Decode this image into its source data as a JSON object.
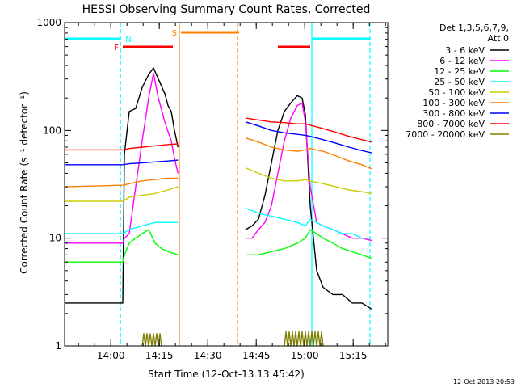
{
  "chart_data": {
    "type": "line",
    "title": "HESSI Observing Summary Count Rates, Corrected",
    "xlabel": "Start Time (12-Oct-13 13:45:42)",
    "ylabel": "Corrected Count Rate (s⁻¹ detector⁻¹)",
    "timestamp": "12-Oct-2013 20:53",
    "x_unit": "minutes after 13:45:42",
    "xlim": [
      0,
      100
    ],
    "ylim": [
      1,
      1000
    ],
    "yscale": "log",
    "x_ticks": [
      {
        "t": 14.3,
        "label": "14:00"
      },
      {
        "t": 29.3,
        "label": "14:15"
      },
      {
        "t": 44.3,
        "label": "14:30"
      },
      {
        "t": 59.3,
        "label": "14:45"
      },
      {
        "t": 74.3,
        "label": "15:00"
      },
      {
        "t": 89.3,
        "label": "15:15"
      }
    ],
    "y_ticks": [
      {
        "v": 1,
        "label": "1"
      },
      {
        "v": 10,
        "label": "10"
      },
      {
        "v": 100,
        "label": "100"
      },
      {
        "v": 1000,
        "label": "1000"
      }
    ],
    "legend": {
      "header": [
        "Det 1,3,5,6,7,9,",
        "Att 0"
      ],
      "position": "right-outside"
    },
    "series": [
      {
        "name": "3 - 6 keV",
        "color": "#000000",
        "points": [
          [
            0,
            2.5
          ],
          [
            18,
            2.5
          ],
          [
            18.5,
            60
          ],
          [
            20,
            150
          ],
          [
            22,
            160
          ],
          [
            24,
            250
          ],
          [
            26,
            330
          ],
          [
            27.5,
            380
          ],
          [
            29,
            300
          ],
          [
            31,
            220
          ],
          [
            32,
            170
          ],
          [
            33,
            150
          ],
          [
            34,
            100
          ],
          [
            35.1,
            70
          ],
          [
            null,
            null
          ],
          [
            56,
            12
          ],
          [
            58,
            13
          ],
          [
            60,
            15
          ],
          [
            62,
            25
          ],
          [
            64,
            50
          ],
          [
            66,
            100
          ],
          [
            68,
            150
          ],
          [
            70,
            180
          ],
          [
            72,
            210
          ],
          [
            73.5,
            200
          ],
          [
            74.5,
            140
          ],
          [
            76,
            20
          ],
          [
            78,
            5
          ],
          [
            80,
            3.5
          ],
          [
            83,
            3
          ],
          [
            86,
            3
          ],
          [
            89,
            2.5
          ],
          [
            92,
            2.5
          ],
          [
            95,
            2.2
          ]
        ]
      },
      {
        "name": "6 - 12 keV",
        "color": "#ff00ff",
        "points": [
          [
            0,
            9
          ],
          [
            18,
            9
          ],
          [
            18.5,
            10
          ],
          [
            20,
            11
          ],
          [
            22,
            30
          ],
          [
            24,
            80
          ],
          [
            26,
            200
          ],
          [
            27.5,
            340
          ],
          [
            29,
            200
          ],
          [
            31,
            120
          ],
          [
            33,
            80
          ],
          [
            34,
            55
          ],
          [
            35.1,
            40
          ],
          [
            null,
            null
          ],
          [
            56,
            10
          ],
          [
            58,
            10
          ],
          [
            60,
            12
          ],
          [
            62,
            14
          ],
          [
            64,
            20
          ],
          [
            66,
            40
          ],
          [
            68,
            80
          ],
          [
            70,
            130
          ],
          [
            72,
            170
          ],
          [
            73.5,
            180
          ],
          [
            74.5,
            120
          ],
          [
            76,
            30
          ],
          [
            78,
            14
          ],
          [
            80,
            13
          ],
          [
            83,
            12
          ],
          [
            86,
            11
          ],
          [
            89,
            10
          ],
          [
            92,
            10
          ],
          [
            95,
            9.5
          ]
        ]
      },
      {
        "name": "12 - 25 keV",
        "color": "#00ff00",
        "points": [
          [
            0,
            6
          ],
          [
            18,
            6
          ],
          [
            18.5,
            7
          ],
          [
            20,
            9
          ],
          [
            22,
            10
          ],
          [
            24,
            11
          ],
          [
            26,
            12
          ],
          [
            28,
            9
          ],
          [
            30,
            8
          ],
          [
            32,
            7.5
          ],
          [
            35.1,
            7
          ],
          [
            null,
            null
          ],
          [
            56,
            7
          ],
          [
            60,
            7
          ],
          [
            64,
            7.5
          ],
          [
            68,
            8
          ],
          [
            72,
            9
          ],
          [
            74.5,
            10
          ],
          [
            76,
            12
          ],
          [
            78,
            11
          ],
          [
            80,
            10
          ],
          [
            83,
            9
          ],
          [
            86,
            8
          ],
          [
            89,
            7.5
          ],
          [
            92,
            7
          ],
          [
            95,
            6.5
          ]
        ]
      },
      {
        "name": "25 - 50 keV",
        "color": "#00ffff",
        "points": [
          [
            0,
            11
          ],
          [
            18,
            11
          ],
          [
            20,
            12
          ],
          [
            24,
            13
          ],
          [
            28,
            14
          ],
          [
            32,
            14
          ],
          [
            35.1,
            14
          ],
          [
            null,
            null
          ],
          [
            56,
            19
          ],
          [
            60,
            17
          ],
          [
            64,
            16
          ],
          [
            68,
            15
          ],
          [
            72,
            14
          ],
          [
            74.5,
            13
          ],
          [
            76,
            15
          ],
          [
            78,
            14
          ],
          [
            80,
            13
          ],
          [
            83,
            12
          ],
          [
            86,
            11
          ],
          [
            89,
            11
          ],
          [
            92,
            10
          ],
          [
            95,
            10
          ]
        ]
      },
      {
        "name": "50 - 100 keV",
        "color": "#cccc00",
        "points": [
          [
            0,
            22
          ],
          [
            18,
            22
          ],
          [
            20,
            24
          ],
          [
            24,
            25
          ],
          [
            28,
            26
          ],
          [
            32,
            28
          ],
          [
            35.1,
            30
          ],
          [
            null,
            null
          ],
          [
            56,
            45
          ],
          [
            60,
            40
          ],
          [
            64,
            36
          ],
          [
            68,
            34
          ],
          [
            72,
            34
          ],
          [
            74.5,
            35
          ],
          [
            76,
            34
          ],
          [
            80,
            32
          ],
          [
            84,
            30
          ],
          [
            88,
            28
          ],
          [
            92,
            27
          ],
          [
            95,
            26
          ]
        ]
      },
      {
        "name": "100 - 300 keV",
        "color": "#ff8000",
        "points": [
          [
            0,
            30
          ],
          [
            18,
            31
          ],
          [
            20,
            32
          ],
          [
            24,
            34
          ],
          [
            28,
            35
          ],
          [
            32,
            36
          ],
          [
            35.1,
            36
          ],
          [
            null,
            null
          ],
          [
            56,
            85
          ],
          [
            60,
            78
          ],
          [
            64,
            70
          ],
          [
            68,
            66
          ],
          [
            72,
            64
          ],
          [
            74.5,
            66
          ],
          [
            76,
            68
          ],
          [
            80,
            64
          ],
          [
            84,
            58
          ],
          [
            88,
            52
          ],
          [
            92,
            48
          ],
          [
            95,
            44
          ]
        ]
      },
      {
        "name": "300 - 800 keV",
        "color": "#0000ff",
        "points": [
          [
            0,
            48
          ],
          [
            18,
            48
          ],
          [
            20,
            49
          ],
          [
            24,
            50
          ],
          [
            28,
            51
          ],
          [
            32,
            52
          ],
          [
            35.1,
            53
          ],
          [
            null,
            null
          ],
          [
            56,
            120
          ],
          [
            60,
            110
          ],
          [
            64,
            100
          ],
          [
            68,
            95
          ],
          [
            72,
            92
          ],
          [
            74.5,
            90
          ],
          [
            76,
            88
          ],
          [
            80,
            82
          ],
          [
            84,
            76
          ],
          [
            88,
            70
          ],
          [
            92,
            65
          ],
          [
            95,
            62
          ]
        ]
      },
      {
        "name": "800 - 7000 keV",
        "color": "#ff0000",
        "points": [
          [
            0,
            66
          ],
          [
            18,
            66
          ],
          [
            20,
            68
          ],
          [
            24,
            70
          ],
          [
            28,
            72
          ],
          [
            32,
            74
          ],
          [
            35.1,
            75
          ],
          [
            null,
            null
          ],
          [
            56,
            130
          ],
          [
            60,
            125
          ],
          [
            64,
            120
          ],
          [
            68,
            118
          ],
          [
            72,
            115
          ],
          [
            74.5,
            115
          ],
          [
            76,
            112
          ],
          [
            80,
            104
          ],
          [
            84,
            96
          ],
          [
            88,
            88
          ],
          [
            92,
            82
          ],
          [
            95,
            78
          ]
        ]
      },
      {
        "name": "7000 - 20000 keV",
        "color": "#808000",
        "points": [
          [
            24,
            1.0
          ],
          [
            24.5,
            1.3
          ],
          [
            25,
            1.0
          ],
          [
            25.5,
            1.3
          ],
          [
            26,
            1.0
          ],
          [
            26.5,
            1.3
          ],
          [
            27,
            1.0
          ],
          [
            27.5,
            1.3
          ],
          [
            28,
            1.0
          ],
          [
            28.5,
            1.3
          ],
          [
            29,
            1.0
          ],
          [
            29.5,
            1.3
          ],
          [
            30,
            1.0
          ],
          [
            null,
            null
          ],
          [
            68,
            1.0
          ],
          [
            68.5,
            1.35
          ],
          [
            69,
            1.0
          ],
          [
            69.5,
            1.35
          ],
          [
            70,
            1.0
          ],
          [
            70.5,
            1.35
          ],
          [
            71,
            1.0
          ],
          [
            71.5,
            1.35
          ],
          [
            72,
            1.0
          ],
          [
            72.5,
            1.35
          ],
          [
            73,
            1.0
          ],
          [
            73.5,
            1.35
          ],
          [
            74,
            1.0
          ],
          [
            74.5,
            1.35
          ],
          [
            75,
            1.0
          ],
          [
            75.5,
            1.35
          ],
          [
            76,
            1.0
          ],
          [
            76.5,
            1.35
          ],
          [
            77,
            1.0
          ],
          [
            77.5,
            1.35
          ],
          [
            78,
            1.0
          ],
          [
            78.5,
            1.35
          ],
          [
            79,
            1.0
          ],
          [
            79.5,
            1.35
          ],
          [
            80,
            1.0
          ]
        ]
      }
    ],
    "overlays": {
      "vertical_lines": [
        {
          "t": 17.3,
          "style": "dashed",
          "color": "#00ffff"
        },
        {
          "t": 35.5,
          "style": "solid",
          "color": "#ff8000"
        },
        {
          "t": 53.5,
          "style": "dashed",
          "color": "#ff8000"
        },
        {
          "t": 76.5,
          "style": "solid",
          "color": "#00ffff"
        },
        {
          "t": 94.5,
          "style": "dashed",
          "color": "#00ffff"
        }
      ],
      "state_bars": [
        {
          "label": "N",
          "start": 0,
          "end": 17.3,
          "color": "#00ffff",
          "label_color": "#00ffff"
        },
        {
          "label": "N",
          "start": 76.5,
          "end": 94.5,
          "color": "#00ffff",
          "label_color": null
        },
        {
          "label": "F",
          "start": 18.0,
          "end": 33.5,
          "color": "#ff0000",
          "label_color": "#ff0000"
        },
        {
          "label": "F",
          "start": 66.0,
          "end": 76.0,
          "color": "#ff0000",
          "label_color": null
        },
        {
          "label": "S",
          "start": 36.0,
          "end": 54.0,
          "color": "#ff8000",
          "label_color": "#ff8000"
        }
      ]
    }
  }
}
